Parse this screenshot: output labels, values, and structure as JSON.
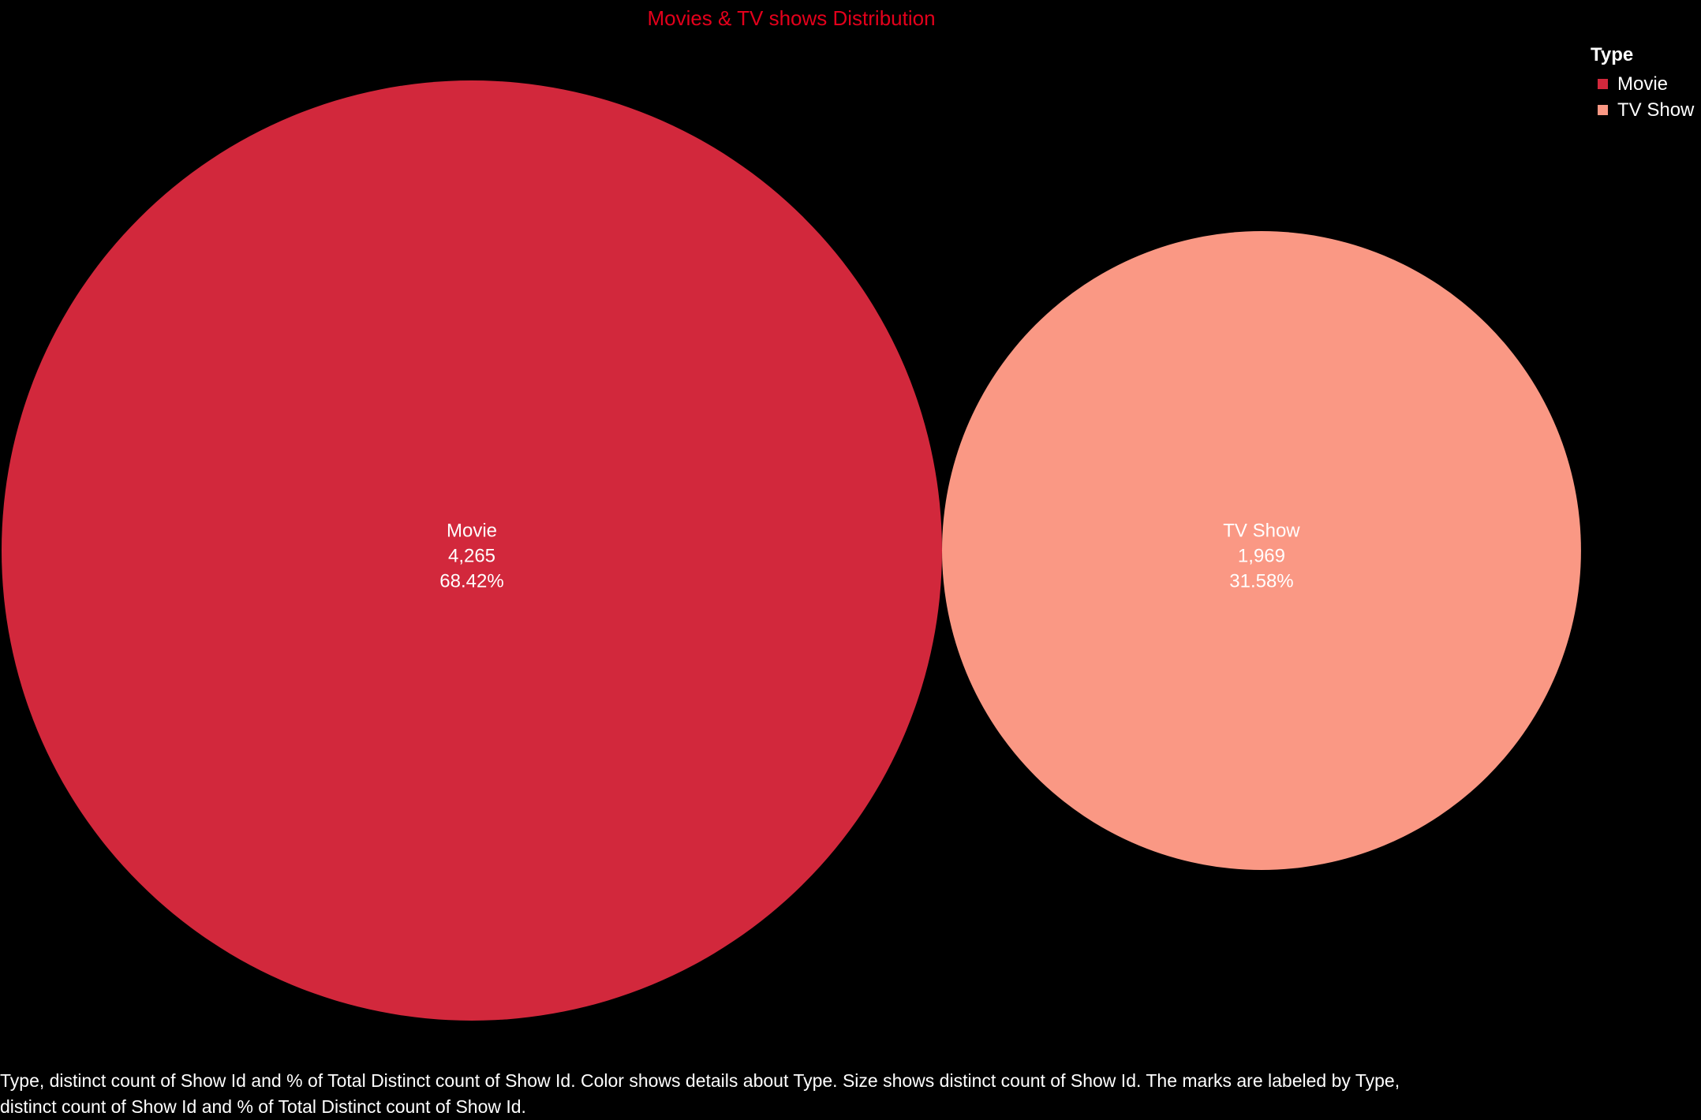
{
  "chart_data": {
    "type": "bubble",
    "title": "Movies & TV shows Distribution",
    "legend": {
      "title": "Type",
      "placement": "top-right",
      "items": [
        {
          "label": "Movie",
          "color": "#d2283c"
        },
        {
          "label": "TV Show",
          "color": "#fa9884"
        }
      ]
    },
    "series": [
      {
        "name": "Movie",
        "count": 4265,
        "count_label": "4,265",
        "percent": 68.42,
        "percent_label": "68.42%",
        "color": "#d2283c"
      },
      {
        "name": "TV Show",
        "count": 1969,
        "count_label": "1,969",
        "percent": 31.58,
        "percent_label": "31.58%",
        "color": "#fa9884"
      }
    ]
  },
  "caption": {
    "line1": "Type, distinct count of Show Id and % of Total Distinct count of Show Id.  Color shows details about Type.  Size shows distinct count of Show Id.  The marks are labeled by Type,",
    "line2": "distinct count of Show Id and % of Total Distinct count of Show Id."
  }
}
